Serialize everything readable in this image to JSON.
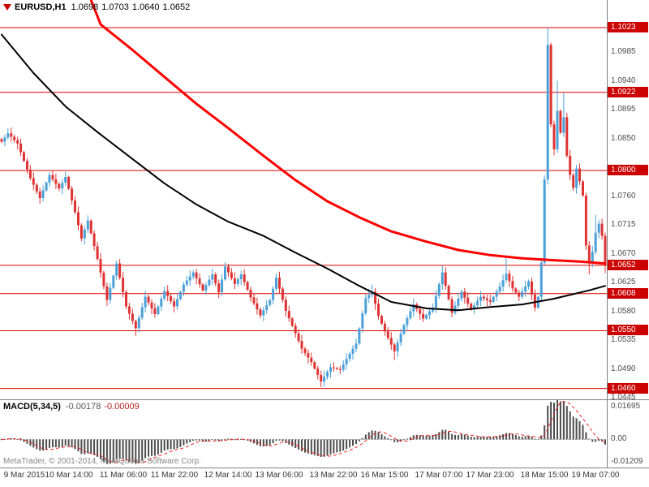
{
  "window": {
    "header": {
      "symbol": "EURUSD,H1",
      "open": "1.0698",
      "high": "1.0703",
      "low": "1.0640",
      "close": "1.0652"
    },
    "watermark": "MetaTrader, © 2001-2014, MetaQuotes Software Corp."
  },
  "colors": {
    "up": "#4aa0d8",
    "down": "#e03232",
    "ma_fast": "#000000",
    "ma_slow": "#ff0000",
    "level_line": "#dd0000",
    "badge_bg": "#cc0000",
    "badge_text": "#ffffff",
    "axis_text": "#4d4d4d",
    "macd_bar": "#4d4d4d",
    "macd_signal": "#ee2020",
    "separator": "#808080"
  },
  "chart_data": {
    "type": "candlestick",
    "symbol": "EURUSD",
    "timeframe": "H1",
    "bars_total": 190,
    "price_axis": {
      "top": 1.1066,
      "bottom": 1.0443,
      "labels": [
        1.0985,
        1.094,
        1.0895,
        1.085,
        1.076,
        1.0715,
        1.067,
        1.0625,
        1.058,
        1.0535,
        1.049,
        1.0445
      ],
      "badges": [
        1.1023,
        1.0922,
        1.08,
        1.0652,
        1.0608,
        1.055,
        1.046
      ]
    },
    "levels": [
      1.1023,
      1.0922,
      1.08,
      1.0652,
      1.0608,
      1.055,
      1.046
    ],
    "price_path": [
      [
        0,
        1.0845
      ],
      [
        2,
        1.0858
      ],
      [
        5,
        1.0842
      ],
      [
        9,
        1.0788
      ],
      [
        12,
        1.0757
      ],
      [
        15,
        1.0793
      ],
      [
        18,
        1.0772
      ],
      [
        20,
        1.079
      ],
      [
        23,
        1.0735
      ],
      [
        25,
        1.0694
      ],
      [
        27,
        1.0722
      ],
      [
        30,
        1.0662
      ],
      [
        33,
        1.0598
      ],
      [
        36,
        1.0655
      ],
      [
        39,
        1.0588
      ],
      [
        42,
        1.0554
      ],
      [
        45,
        1.0603
      ],
      [
        48,
        1.0576
      ],
      [
        51,
        1.0612
      ],
      [
        54,
        1.0588
      ],
      [
        57,
        1.0622
      ],
      [
        60,
        1.0641
      ],
      [
        63,
        1.0613
      ],
      [
        66,
        1.0638
      ],
      [
        68,
        1.061
      ],
      [
        70,
        1.065
      ],
      [
        73,
        1.0623
      ],
      [
        75,
        1.0638
      ],
      [
        78,
        1.0602
      ],
      [
        81,
        1.0574
      ],
      [
        84,
        1.0598
      ],
      [
        86,
        1.0633
      ],
      [
        89,
        1.0581
      ],
      [
        92,
        1.0546
      ],
      [
        94,
        1.0522
      ],
      [
        97,
        1.0501
      ],
      [
        100,
        1.0471
      ],
      [
        103,
        1.0493
      ],
      [
        106,
        1.0489
      ],
      [
        108,
        1.0506
      ],
      [
        111,
        1.053
      ],
      [
        114,
        1.0601
      ],
      [
        116,
        1.0611
      ],
      [
        118,
        1.0573
      ],
      [
        120,
        1.0549
      ],
      [
        123,
        1.0518
      ],
      [
        126,
        1.0559
      ],
      [
        129,
        1.0591
      ],
      [
        132,
        1.0569
      ],
      [
        135,
        1.0586
      ],
      [
        138,
        1.0641
      ],
      [
        141,
        1.0578
      ],
      [
        144,
        1.0611
      ],
      [
        147,
        1.0583
      ],
      [
        150,
        1.0603
      ],
      [
        153,
        1.0595
      ],
      [
        156,
        1.0619
      ],
      [
        158,
        1.0639
      ],
      [
        160,
        1.0616
      ],
      [
        162,
        1.0603
      ],
      [
        165,
        1.0627
      ],
      [
        167,
        1.0586
      ],
      [
        168,
        1.0603
      ],
      [
        169,
        1.0656
      ],
      [
        170,
        1.0786
      ],
      [
        171,
        1.0996
      ],
      [
        172,
        1.0872
      ],
      [
        173,
        1.0833
      ],
      [
        174,
        1.0893
      ],
      [
        175,
        1.0859
      ],
      [
        176,
        1.0883
      ],
      [
        177,
        1.0823
      ],
      [
        178,
        1.0793
      ],
      [
        179,
        1.0773
      ],
      [
        180,
        1.0803
      ],
      [
        181,
        1.0783
      ],
      [
        182,
        1.0761
      ],
      [
        183,
        1.0683
      ],
      [
        184,
        1.0657
      ],
      [
        185,
        1.0673
      ],
      [
        186,
        1.0703
      ],
      [
        187,
        1.0717
      ],
      [
        188,
        1.0698
      ],
      [
        189,
        1.0652
      ]
    ],
    "bar_overrides": {
      "2": {
        "h": 1.0866
      },
      "42": {
        "l": 1.0542
      },
      "70": {
        "h": 1.0657
      },
      "100": {
        "l": 1.0462
      },
      "116": {
        "h": 1.0622
      },
      "123": {
        "l": 1.0504
      },
      "138": {
        "h": 1.0651
      },
      "158": {
        "h": 1.0663
      },
      "171": {
        "h": 1.1023
      },
      "174": {
        "h": 1.094
      },
      "176": {
        "h": 1.0921
      },
      "184": {
        "l": 1.0638
      },
      "186": {
        "h": 1.0731
      },
      "189": {
        "o": 1.0698,
        "h": 1.0703,
        "l": 1.064,
        "c": 1.0652
      }
    },
    "ma_slow_path": [
      [
        28,
        1.1066
      ],
      [
        31,
        1.1028
      ],
      [
        41,
        1.0988
      ],
      [
        51,
        1.0946
      ],
      [
        61,
        1.0904
      ],
      [
        71,
        1.0866
      ],
      [
        82,
        1.0823
      ],
      [
        92,
        1.0785
      ],
      [
        102,
        1.0752
      ],
      [
        112,
        1.0727
      ],
      [
        122,
        1.0705
      ],
      [
        133,
        1.0689
      ],
      [
        143,
        1.0676
      ],
      [
        153,
        1.0668
      ],
      [
        163,
        1.0663
      ],
      [
        173,
        1.066
      ],
      [
        181,
        1.0658
      ],
      [
        189,
        1.0655
      ]
    ],
    "ma_fast_path": [
      [
        0,
        1.1012
      ],
      [
        10,
        1.0952
      ],
      [
        20,
        1.09
      ],
      [
        30,
        1.086
      ],
      [
        41,
        1.0818
      ],
      [
        51,
        1.078
      ],
      [
        61,
        1.0747
      ],
      [
        71,
        1.072
      ],
      [
        82,
        1.0698
      ],
      [
        92,
        1.0672
      ],
      [
        102,
        1.0647
      ],
      [
        112,
        1.062
      ],
      [
        122,
        1.0595
      ],
      [
        133,
        1.0585
      ],
      [
        143,
        1.0582
      ],
      [
        153,
        1.0587
      ],
      [
        163,
        1.0591
      ],
      [
        173,
        1.06
      ],
      [
        184,
        1.0613
      ],
      [
        189,
        1.062
      ]
    ],
    "macd": {
      "label": "MACD(5,34,5)",
      "params": [
        5,
        34,
        5
      ],
      "value_main": "-0.00178",
      "value_signal": "-0.00009",
      "axis": {
        "max": 0.01695,
        "min": -0.01209,
        "display": [
          "0.01695",
          "0.00",
          "-0.01209"
        ]
      }
    },
    "time_labels": [
      {
        "bar": 5,
        "text": "9 Mar 2015"
      },
      {
        "bar": 21,
        "text": "10 Mar 14:00"
      },
      {
        "bar": 38,
        "text": "11 Mar 06:00"
      },
      {
        "bar": 54,
        "text": "11 Mar 22:00"
      },
      {
        "bar": 71,
        "text": "12 Mar 14:00"
      },
      {
        "bar": 87,
        "text": "13 Mar 06:00"
      },
      {
        "bar": 104,
        "text": "13 Mar 22:00"
      },
      {
        "bar": 120,
        "text": "16 Mar 15:00"
      },
      {
        "bar": 137,
        "text": "17 Mar 07:00"
      },
      {
        "bar": 153,
        "text": "17 Mar 23:00"
      },
      {
        "bar": 170,
        "text": "18 Mar 15:00"
      },
      {
        "bar": 186,
        "text": "19 Mar 07:00"
      }
    ]
  }
}
